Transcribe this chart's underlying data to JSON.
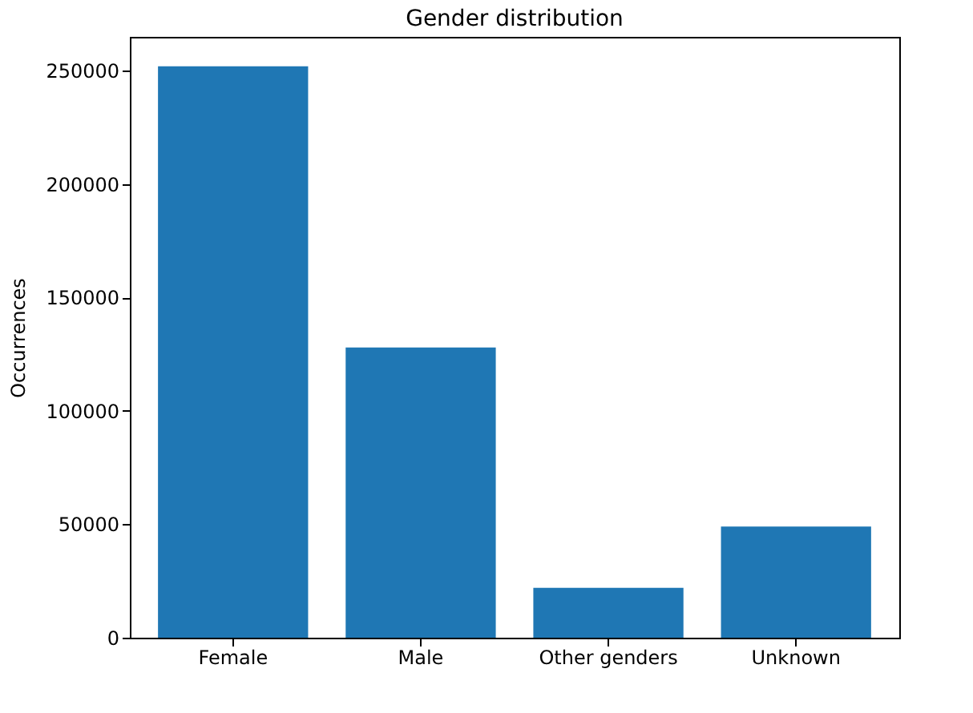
{
  "chart_data": {
    "type": "bar",
    "title": "Gender distribution",
    "ylabel": "Occurrences",
    "categories": [
      "Female",
      "Male",
      "Other genders",
      "Unknown"
    ],
    "values": [
      252000,
      128000,
      22000,
      49000
    ],
    "color": "#1f77b4",
    "ylim": [
      0,
      265000
    ],
    "yticks": [
      0,
      50000,
      100000,
      150000,
      200000,
      250000
    ],
    "grid": false
  }
}
